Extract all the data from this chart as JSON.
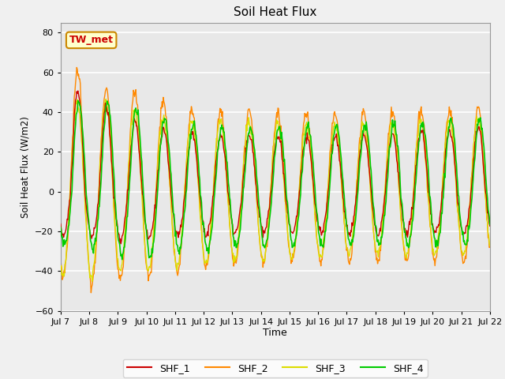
{
  "title": "Soil Heat Flux",
  "ylabel": "Soil Heat Flux (W/m2)",
  "xlabel": "Time",
  "ylim": [
    -60,
    85
  ],
  "yticks": [
    -60,
    -40,
    -20,
    0,
    20,
    40,
    60,
    80
  ],
  "xtick_labels": [
    "Jul 7",
    "Jul 8",
    "Jul 9",
    "Jul 10",
    "Jul 11",
    "Jul 12",
    "Jul 13",
    "Jul 14",
    "Jul 15",
    "Jul 16",
    "Jul 17",
    "Jul 18",
    "Jul 19",
    "Jul 20",
    "Jul 21",
    "Jul 22"
  ],
  "colors": {
    "SHF_1": "#cc0000",
    "SHF_2": "#ff8800",
    "SHF_3": "#dddd00",
    "SHF_4": "#00cc00"
  },
  "annotation_text": "TW_met",
  "annotation_color": "#cc0000",
  "annotation_bg": "#ffffcc",
  "annotation_border": "#cc8800",
  "fig_bg": "#f0f0f0",
  "ax_bg": "#e8e8e8",
  "grid_color": "#ffffff"
}
